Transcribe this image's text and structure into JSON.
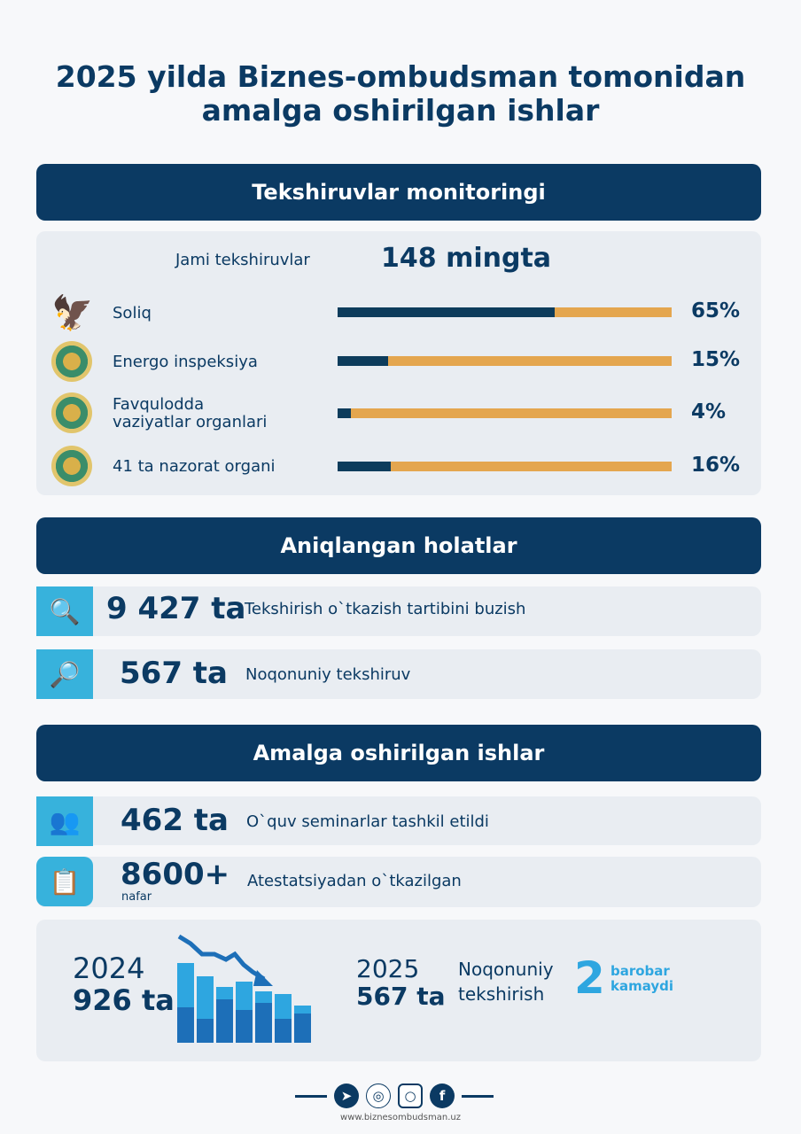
{
  "title_line1": "2025 yilda Biznes-ombudsman tomonidan",
  "title_line2": "amalga oshirilgan ishlar",
  "monitoring": {
    "header": "Tekshiruvlar monitoringi",
    "total_label": "Jami tekshiruvlar",
    "total_value": "148 mingta",
    "rows": [
      {
        "label": "Soliq",
        "percent_text": "65%",
        "percent": 65,
        "icon": "eagle-emblem-icon"
      },
      {
        "label": "Energo inspeksiya",
        "percent_text": "15%",
        "percent": 15,
        "icon": "state-emblem-icon"
      },
      {
        "label_line1": "Favqulodda",
        "label_line2": "vaziyatlar organlari",
        "percent_text": "4%",
        "percent": 4,
        "icon": "state-emblem-icon"
      },
      {
        "label": "41 ta nazorat organi",
        "percent_text": "16%",
        "percent": 16,
        "icon": "state-emblem-icon"
      }
    ]
  },
  "findings": {
    "header": "Aniqlangan holatlar",
    "rows": [
      {
        "value": "9 427 ta",
        "text": "Tekshirish o`tkazish tartibini buzish",
        "icon": "inspection-search-icon"
      },
      {
        "value": "567 ta",
        "text": "Noqonuniy tekshiruv",
        "icon": "document-magnifier-icon"
      }
    ]
  },
  "works": {
    "header": "Amalga oshirilgan ishlar",
    "rows": [
      {
        "value": "462 ta",
        "text": "O`quv seminarlar tashkil etildi",
        "icon": "seminar-icon"
      },
      {
        "value": "8600+",
        "sub": "nafar",
        "text": "Atestatsiyadan o`tkazilgan",
        "icon": "certification-icon"
      }
    ]
  },
  "comparison": {
    "year1": "2024",
    "value1": "926 ta",
    "year2": "2025",
    "value2": "567 ta",
    "label_line1": "Noqonuniy",
    "label_line2": "tekshirish",
    "factor": "2",
    "factor_line1": "barobar",
    "factor_line2": "kamaydi",
    "colors": {
      "light": "#2ea6e0",
      "dark": "#1d6fb8"
    }
  },
  "footer": {
    "website": "www.biznesombudsman.uz",
    "icons": [
      "telegram-icon",
      "globe-icon",
      "instagram-icon",
      "facebook-icon"
    ]
  },
  "colors": {
    "navy": "#0b3a63",
    "orange": "#e4a64f",
    "cyan": "#37b2dc",
    "panel": "#e9edf2"
  }
}
